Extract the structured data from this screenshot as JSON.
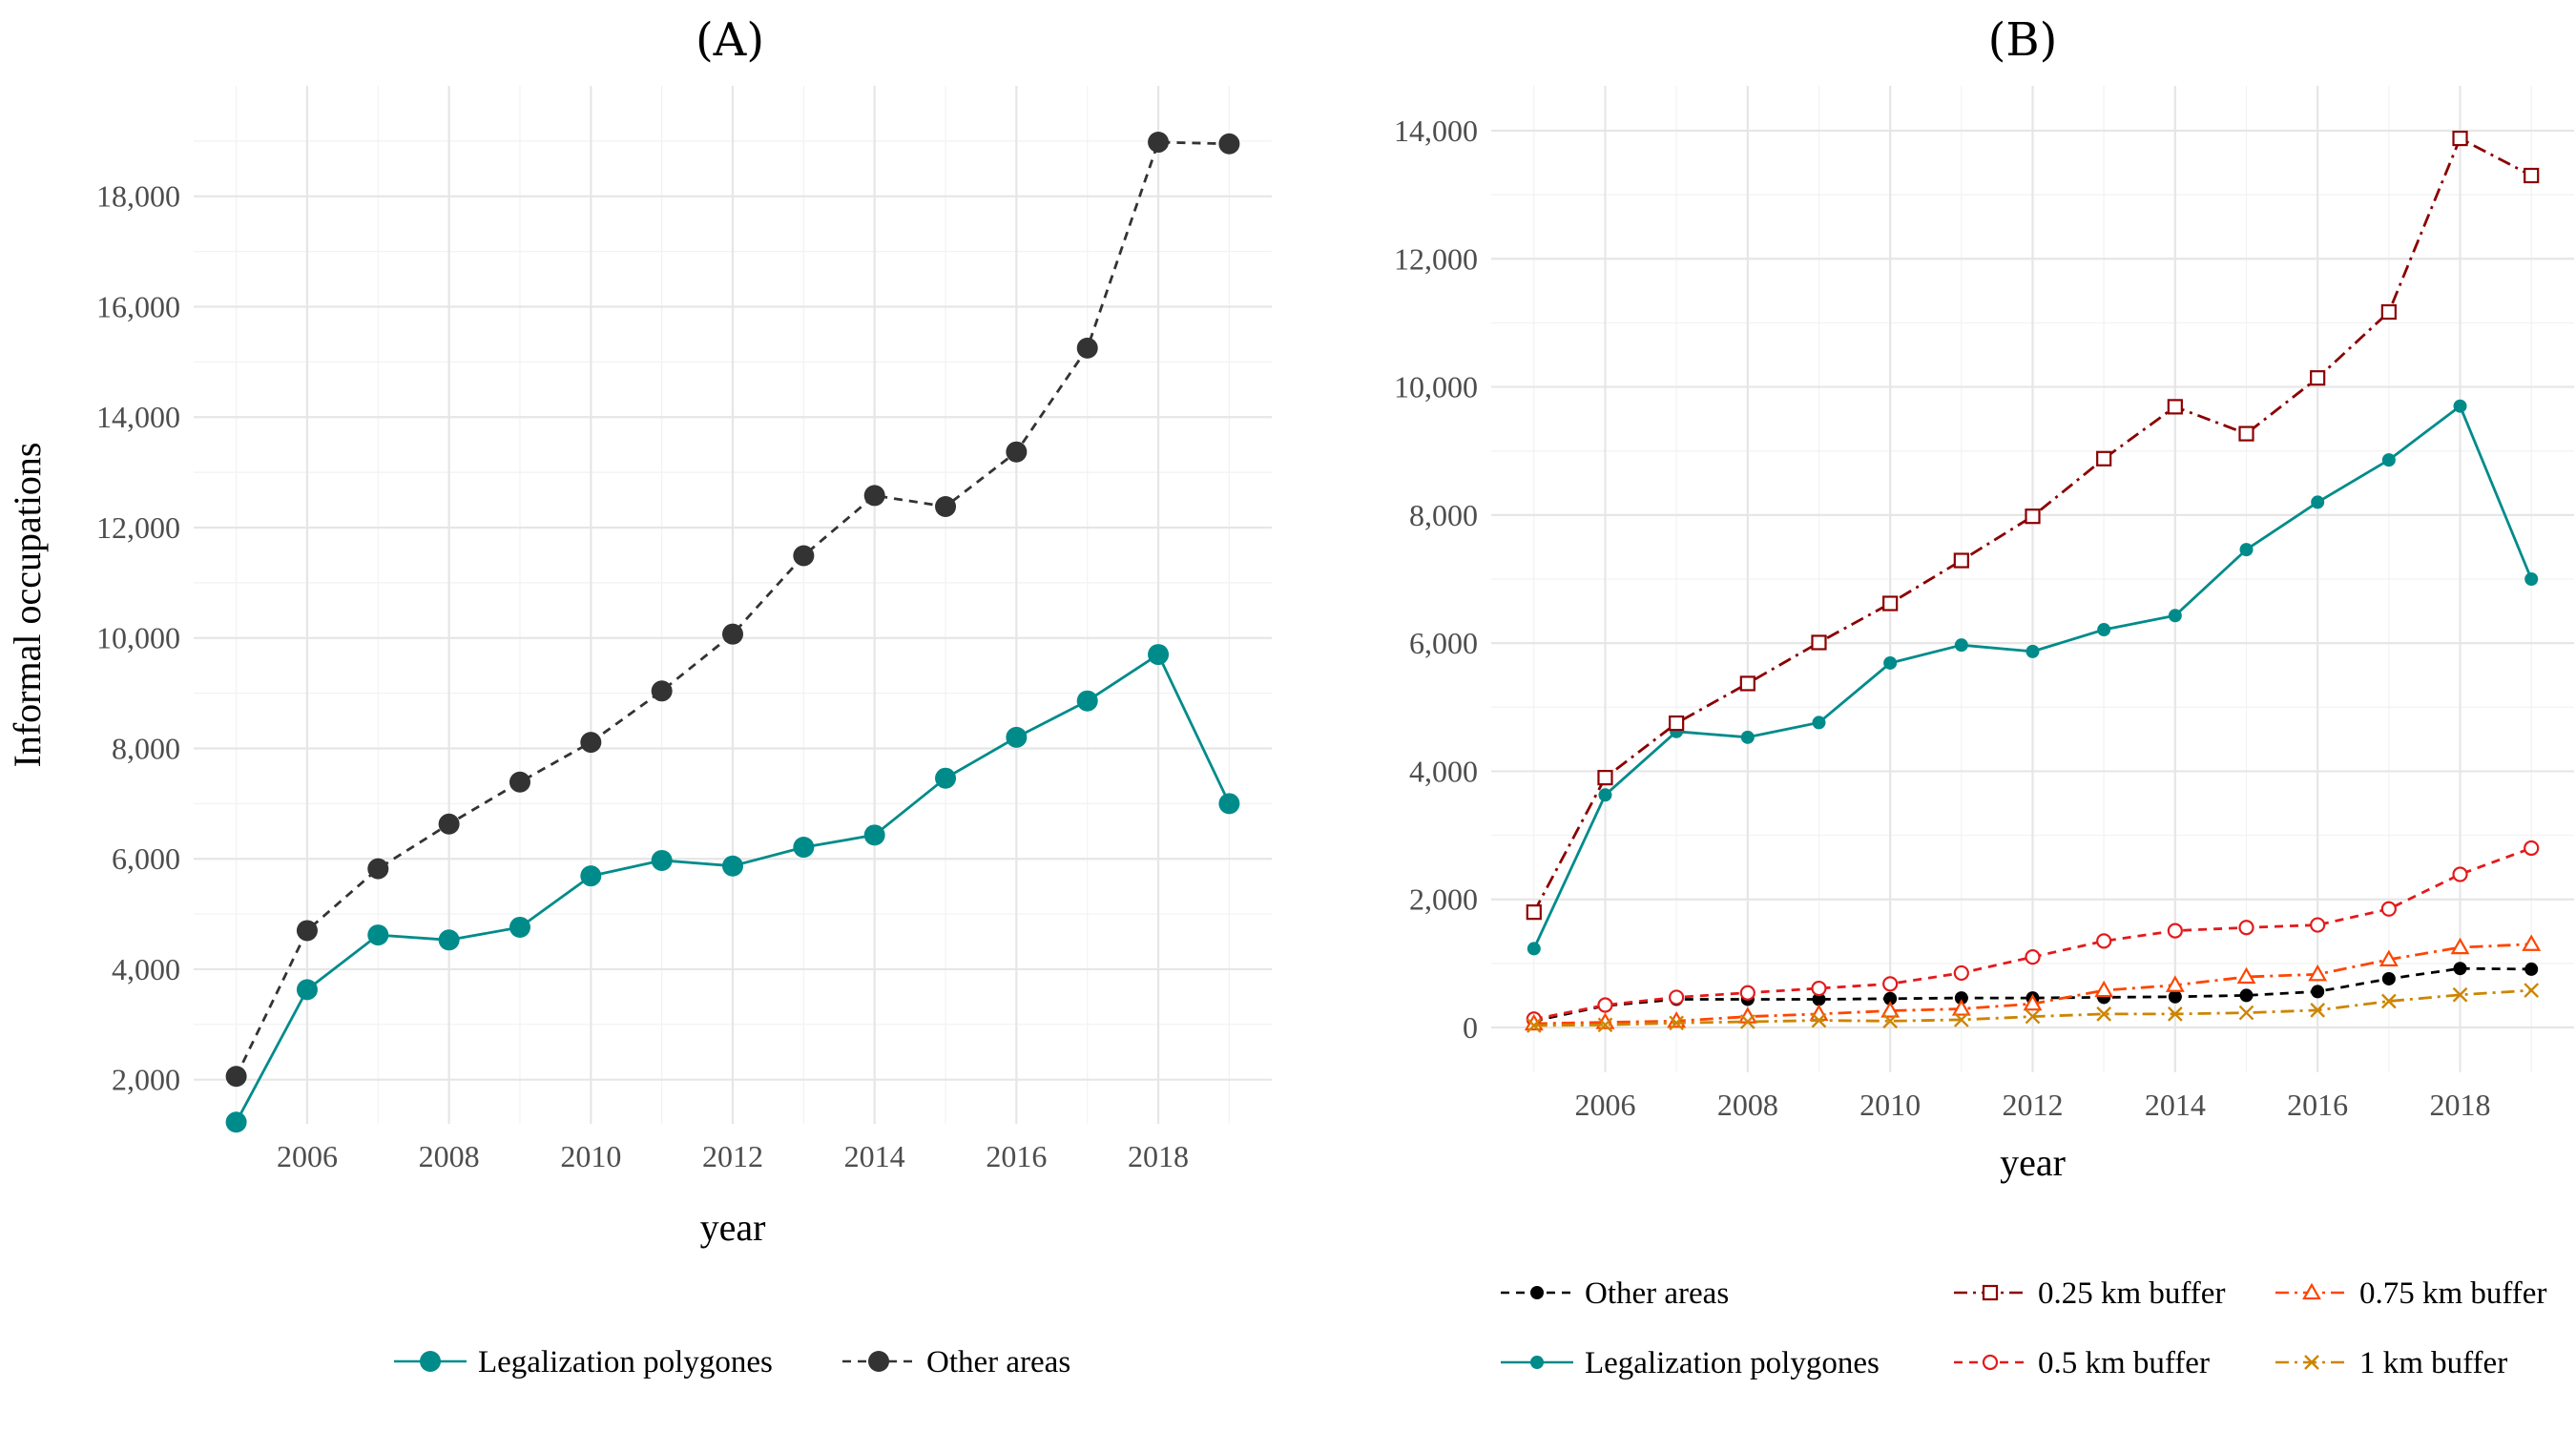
{
  "chart_data": [
    {
      "type": "line",
      "title": "(A)",
      "xlabel": "year",
      "ylabel": "Informal occupations",
      "x": [
        2005,
        2006,
        2007,
        2008,
        2009,
        2010,
        2011,
        2012,
        2013,
        2014,
        2015,
        2016,
        2017,
        2018,
        2019
      ],
      "xticks": [
        "2006",
        "2008",
        "2010",
        "2012",
        "2014",
        "2016",
        "2018"
      ],
      "yticks": [
        "2,000",
        "4,000",
        "6,000",
        "8,000",
        "10,000",
        "12,000",
        "14,000",
        "16,000",
        "18,000"
      ],
      "xlim": [
        2004.4,
        2019.6
      ],
      "ylim": [
        1200,
        20000
      ],
      "grid": true,
      "legend_position": "bottom",
      "series": [
        {
          "name": "Legalization polygones",
          "color": "#008b8b",
          "dash": "solid",
          "marker": "filled-circle",
          "values": [
            1230,
            3630,
            4620,
            4530,
            4760,
            5690,
            5970,
            5870,
            6210,
            6430,
            7460,
            8200,
            8860,
            9700,
            7000
          ]
        },
        {
          "name": "Other areas",
          "color": "#333333",
          "dash": "dashed",
          "marker": "filled-circle",
          "values": [
            2060,
            4700,
            5820,
            6630,
            7390,
            8110,
            9040,
            10070,
            11490,
            12580,
            12380,
            13370,
            15250,
            18980,
            18950
          ]
        }
      ]
    },
    {
      "type": "line",
      "title": "(B)",
      "xlabel": "year",
      "ylabel": "",
      "x": [
        2005,
        2006,
        2007,
        2008,
        2009,
        2010,
        2011,
        2012,
        2013,
        2014,
        2015,
        2016,
        2017,
        2018,
        2019
      ],
      "xticks": [
        "2006",
        "2008",
        "2010",
        "2012",
        "2014",
        "2016",
        "2018"
      ],
      "yticks": [
        "0",
        "2,000",
        "4,000",
        "6,000",
        "8,000",
        "10,000",
        "12,000",
        "14,000"
      ],
      "xlim": [
        2004.4,
        2019.6
      ],
      "ylim": [
        -700,
        14700
      ],
      "grid": true,
      "legend_position": "bottom",
      "series": [
        {
          "name": "Other areas",
          "color": "#000000",
          "dash": "dashed",
          "marker": "filled-circle",
          "values": [
            100,
            340,
            440,
            440,
            440,
            450,
            460,
            460,
            470,
            480,
            500,
            560,
            760,
            920,
            910
          ]
        },
        {
          "name": "Legalization polygones",
          "color": "#008b8b",
          "dash": "solid",
          "marker": "filled-circle",
          "values": [
            1230,
            3630,
            4620,
            4530,
            4760,
            5690,
            5970,
            5870,
            6210,
            6430,
            7460,
            8200,
            8860,
            9700,
            7000
          ]
        },
        {
          "name": "0.25 km buffer",
          "color": "#8b0000",
          "dash": "dashdot",
          "marker": "open-square",
          "values": [
            1800,
            3900,
            4750,
            5370,
            6010,
            6620,
            7290,
            7980,
            8880,
            9690,
            9270,
            10140,
            11170,
            13880,
            13300
          ]
        },
        {
          "name": "0.5 km buffer",
          "color": "#e31a1c",
          "dash": "dashed",
          "marker": "open-circle",
          "values": [
            130,
            350,
            470,
            540,
            610,
            680,
            850,
            1100,
            1350,
            1510,
            1560,
            1600,
            1850,
            2390,
            2800
          ]
        },
        {
          "name": "0.75 km buffer",
          "color": "#ff4500",
          "dash": "dashdot",
          "marker": "open-triangle",
          "values": [
            60,
            80,
            100,
            170,
            210,
            260,
            290,
            370,
            580,
            660,
            790,
            830,
            1060,
            1250,
            1300
          ]
        },
        {
          "name": "1 km buffer",
          "color": "#cd8500",
          "dash": "dashdot",
          "marker": "x",
          "values": [
            30,
            40,
            70,
            90,
            110,
            100,
            120,
            170,
            210,
            210,
            230,
            270,
            410,
            510,
            580
          ]
        }
      ]
    }
  ]
}
